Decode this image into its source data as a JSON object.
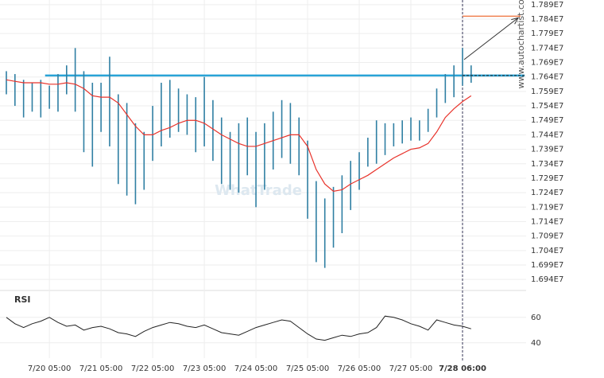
{
  "chart_data": {
    "type": "hilo",
    "categories": [
      null,
      null,
      null,
      null,
      null,
      "7/20 05:00",
      null,
      null,
      null,
      null,
      null,
      "7/21 05:00",
      null,
      null,
      null,
      null,
      null,
      "7/22 05:00",
      null,
      null,
      null,
      null,
      null,
      "7/23 05:00",
      null,
      null,
      null,
      null,
      null,
      "7/24 05:00",
      null,
      null,
      null,
      null,
      null,
      "7/25 05:00",
      null,
      null,
      null,
      null,
      null,
      "7/26 05:00",
      null,
      null,
      null,
      null,
      null,
      "7/27 05:00",
      null,
      null,
      null,
      null,
      null,
      "7/28 06:00",
      null
    ],
    "highlight": 53,
    "high": [
      17660000,
      17650000,
      17630000,
      17620000,
      17630000,
      17610000,
      17650000,
      17680000,
      17740000,
      17660000,
      17620000,
      17620000,
      17710000,
      17580000,
      17550000,
      17480000,
      17450000,
      17540000,
      17620000,
      17630000,
      17600000,
      17580000,
      17570000,
      17640000,
      17560000,
      17500000,
      17450000,
      17480000,
      17500000,
      17450000,
      17480000,
      17520000,
      17560000,
      17550000,
      17500000,
      17420000,
      17280000,
      17220000,
      17260000,
      17300000,
      17350000,
      17380000,
      17430000,
      17490000,
      17480000,
      17480000,
      17490000,
      17500000,
      17490000,
      17530000,
      17600000,
      17650000,
      17680000,
      17740000,
      17680000
    ],
    "low": [
      17580000,
      17540000,
      17500000,
      17520000,
      17500000,
      17530000,
      17520000,
      17580000,
      17520000,
      17380000,
      17330000,
      17450000,
      17400000,
      17270000,
      17230000,
      17200000,
      17250000,
      17350000,
      17400000,
      17430000,
      17450000,
      17440000,
      17380000,
      17400000,
      17350000,
      17270000,
      17250000,
      17240000,
      17300000,
      17190000,
      17250000,
      17320000,
      17360000,
      17340000,
      17300000,
      17150000,
      17000000,
      16980000,
      17050000,
      17100000,
      17180000,
      17250000,
      17330000,
      17340000,
      17370000,
      17400000,
      17410000,
      17420000,
      17420000,
      17450000,
      17500000,
      17550000,
      17570000,
      17610000,
      17620000
    ],
    "bar_color": "#2f7fa3",
    "ma": {
      "color": "#e8322a",
      "values": [
        17630000,
        17625000,
        17620000,
        17620000,
        17620000,
        17615000,
        17615000,
        17620000,
        17615000,
        17600000,
        17575000,
        17570000,
        17570000,
        17550000,
        17510000,
        17470000,
        17440000,
        17440000,
        17455000,
        17465000,
        17480000,
        17490000,
        17490000,
        17480000,
        17460000,
        17440000,
        17425000,
        17410000,
        17400000,
        17400000,
        17410000,
        17420000,
        17430000,
        17440000,
        17440000,
        17400000,
        17320000,
        17270000,
        17245000,
        17250000,
        17270000,
        17285000,
        17300000,
        17320000,
        17340000,
        17360000,
        17375000,
        17390000,
        17395000,
        17410000,
        17450000,
        17500000,
        17530000,
        17555000,
        17575000
      ]
    },
    "ylim": [
      16902000,
      17906000
    ],
    "yticks": [
      {
        "value": 17890000,
        "label": "1.789E7"
      },
      {
        "value": 17840000,
        "label": "1.784E7"
      },
      {
        "value": 17790000,
        "label": "1.779E7"
      },
      {
        "value": 17740000,
        "label": "1.774E7"
      },
      {
        "value": 17690000,
        "label": "1.769E7"
      },
      {
        "value": 17640000,
        "label": "1.764E7"
      },
      {
        "value": 17590000,
        "label": "1.759E7"
      },
      {
        "value": 17540000,
        "label": "1.754E7"
      },
      {
        "value": 17490000,
        "label": "1.749E7"
      },
      {
        "value": 17440000,
        "label": "1.744E7"
      },
      {
        "value": 17390000,
        "label": "1.739E7"
      },
      {
        "value": 17340000,
        "label": "1.734E7"
      },
      {
        "value": 17290000,
        "label": "1.729E7"
      },
      {
        "value": 17240000,
        "label": "1.724E7"
      },
      {
        "value": 17190000,
        "label": "1.719E7"
      },
      {
        "value": 17140000,
        "label": "1.714E7"
      },
      {
        "value": 17090000,
        "label": "1.709E7"
      },
      {
        "value": 17040000,
        "label": "1.704E7"
      },
      {
        "value": 16990000,
        "label": "1.699E7"
      },
      {
        "value": 16940000,
        "label": "1.694E7"
      }
    ],
    "grid": true,
    "resistance": {
      "value": 17645000,
      "color": "#29a3d6"
    },
    "current": 17645000,
    "target": {
      "value": 17850000,
      "color": "#f08050"
    },
    "watermark": "www.autochartist.com",
    "watermark2": "WhatTrade",
    "rsi": {
      "title": "RSI",
      "color": "#222222",
      "ylim": [
        28,
        78
      ],
      "yticks": [
        60,
        40
      ],
      "values": [
        60,
        55,
        52,
        55,
        57,
        60,
        56,
        53,
        54,
        50,
        52,
        53,
        51,
        48,
        47,
        45,
        49,
        52,
        54,
        56,
        55,
        53,
        52,
        54,
        51,
        48,
        47,
        46,
        49,
        52,
        54,
        56,
        58,
        57,
        52,
        47,
        43,
        42,
        44,
        46,
        45,
        47,
        48,
        52,
        61,
        60,
        58,
        55,
        53,
        50,
        58,
        56,
        54,
        53,
        51
      ]
    }
  }
}
